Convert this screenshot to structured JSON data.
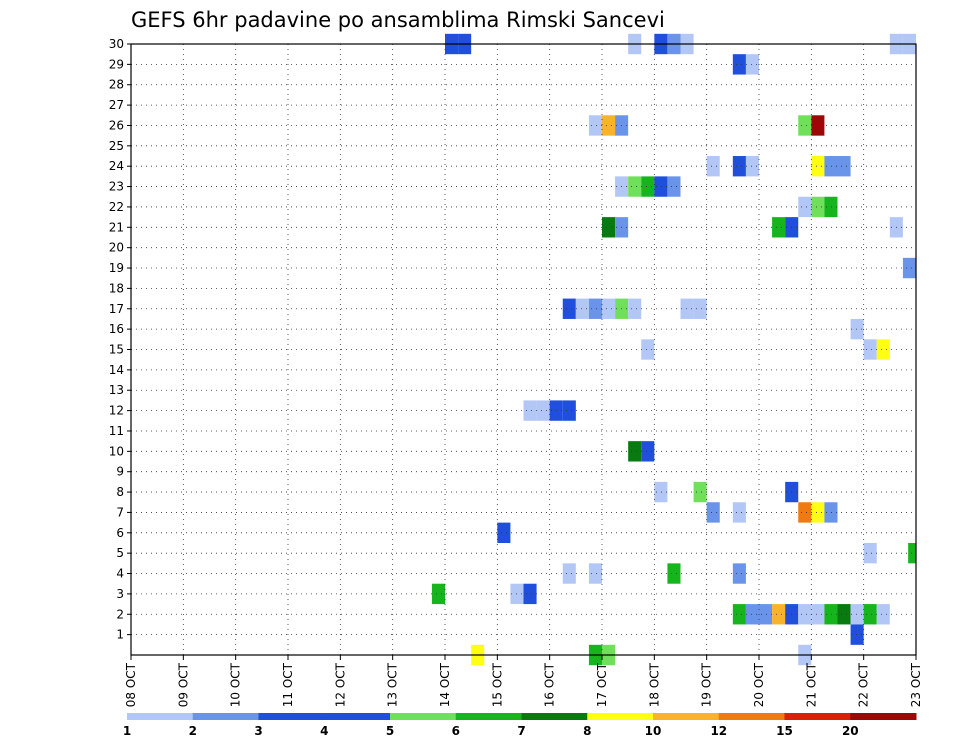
{
  "chart_data": {
    "type": "heatmap",
    "title": "GEFS 6hr padavine po ansamblima Rimski Sancevi",
    "xlabel": "",
    "ylabel": "",
    "x_start_day": 8,
    "x_end_day": 23,
    "x_tick_labels": [
      "08 OCT",
      "09 OCT",
      "10 OCT",
      "11 OCT",
      "12 OCT",
      "13 OCT",
      "14 OCT",
      "15 OCT",
      "16 OCT",
      "17 OCT",
      "18 OCT",
      "19 OCT",
      "20 OCT",
      "21 OCT",
      "22 OCT",
      "23 OCT"
    ],
    "y_tick_labels": [
      "1",
      "2",
      "3",
      "4",
      "5",
      "6",
      "7",
      "8",
      "9",
      "10",
      "11",
      "12",
      "13",
      "14",
      "15",
      "16",
      "17",
      "18",
      "19",
      "20",
      "21",
      "22",
      "23",
      "24",
      "25",
      "26",
      "27",
      "28",
      "29",
      "30"
    ],
    "ylim": [
      0,
      30
    ],
    "colorbar": {
      "labels": [
        "1",
        "2",
        "3",
        "4",
        "5",
        "6",
        "7",
        "8",
        "10",
        "12",
        "15",
        "20"
      ],
      "colors": [
        "#b3c7f7",
        "#6a93ea",
        "#1f4fdb",
        "#1f4fdb",
        "#70e05a",
        "#17b51d",
        "#087a10",
        "#ffff14",
        "#f7b32b",
        "#f07a10",
        "#d8200a",
        "#9a0808"
      ]
    },
    "cells": [
      {
        "member": 30,
        "day": 14.0,
        "category": 3
      },
      {
        "member": 30,
        "day": 14.25,
        "category": 3
      },
      {
        "member": 30,
        "day": 17.5,
        "category": 1
      },
      {
        "member": 30,
        "day": 18.0,
        "category": 3
      },
      {
        "member": 30,
        "day": 18.25,
        "category": 2
      },
      {
        "member": 30,
        "day": 18.5,
        "category": 1
      },
      {
        "member": 30,
        "day": 22.5,
        "category": 1
      },
      {
        "member": 30,
        "day": 22.75,
        "category": 1
      },
      {
        "member": 29,
        "day": 19.5,
        "category": 3
      },
      {
        "member": 29,
        "day": 19.75,
        "category": 1
      },
      {
        "member": 26,
        "day": 16.75,
        "category": 1
      },
      {
        "member": 26,
        "day": 17.0,
        "category": 9
      },
      {
        "member": 26,
        "day": 17.25,
        "category": 2
      },
      {
        "member": 26,
        "day": 20.75,
        "category": 5
      },
      {
        "member": 26,
        "day": 21.0,
        "category": 12
      },
      {
        "member": 24,
        "day": 19.0,
        "category": 1
      },
      {
        "member": 24,
        "day": 19.5,
        "category": 3
      },
      {
        "member": 24,
        "day": 19.75,
        "category": 1
      },
      {
        "member": 24,
        "day": 21.0,
        "category": 8
      },
      {
        "member": 24,
        "day": 21.25,
        "category": 2
      },
      {
        "member": 24,
        "day": 21.5,
        "category": 2
      },
      {
        "member": 23,
        "day": 17.25,
        "category": 1
      },
      {
        "member": 23,
        "day": 17.5,
        "category": 5
      },
      {
        "member": 23,
        "day": 17.75,
        "category": 6
      },
      {
        "member": 23,
        "day": 18.0,
        "category": 3
      },
      {
        "member": 23,
        "day": 18.25,
        "category": 2
      },
      {
        "member": 22,
        "day": 20.75,
        "category": 1
      },
      {
        "member": 22,
        "day": 21.0,
        "category": 5
      },
      {
        "member": 22,
        "day": 21.25,
        "category": 6
      },
      {
        "member": 21,
        "day": 17.0,
        "category": 7
      },
      {
        "member": 21,
        "day": 17.25,
        "category": 2
      },
      {
        "member": 21,
        "day": 20.25,
        "category": 6
      },
      {
        "member": 21,
        "day": 20.5,
        "category": 3
      },
      {
        "member": 21,
        "day": 22.5,
        "category": 1
      },
      {
        "member": 19,
        "day": 22.75,
        "category": 2
      },
      {
        "member": 17,
        "day": 16.25,
        "category": 3
      },
      {
        "member": 17,
        "day": 16.5,
        "category": 1
      },
      {
        "member": 17,
        "day": 16.75,
        "category": 2
      },
      {
        "member": 17,
        "day": 17.0,
        "category": 1
      },
      {
        "member": 17,
        "day": 17.25,
        "category": 5
      },
      {
        "member": 17,
        "day": 17.5,
        "category": 1
      },
      {
        "member": 17,
        "day": 18.5,
        "category": 1
      },
      {
        "member": 17,
        "day": 18.75,
        "category": 1
      },
      {
        "member": 16,
        "day": 21.75,
        "category": 1
      },
      {
        "member": 15,
        "day": 17.75,
        "category": 1
      },
      {
        "member": 15,
        "day": 22.0,
        "category": 1
      },
      {
        "member": 15,
        "day": 22.25,
        "category": 8
      },
      {
        "member": 12,
        "day": 15.5,
        "category": 1
      },
      {
        "member": 12,
        "day": 15.75,
        "category": 1
      },
      {
        "member": 12,
        "day": 16.0,
        "category": 3
      },
      {
        "member": 12,
        "day": 16.25,
        "category": 3
      },
      {
        "member": 10,
        "day": 17.5,
        "category": 7
      },
      {
        "member": 10,
        "day": 17.75,
        "category": 3
      },
      {
        "member": 8,
        "day": 18.0,
        "category": 1
      },
      {
        "member": 8,
        "day": 18.75,
        "category": 5
      },
      {
        "member": 8,
        "day": 20.5,
        "category": 3
      },
      {
        "member": 7,
        "day": 19.0,
        "category": 2
      },
      {
        "member": 7,
        "day": 19.5,
        "category": 1
      },
      {
        "member": 7,
        "day": 20.75,
        "category": 10
      },
      {
        "member": 7,
        "day": 21.0,
        "category": 8
      },
      {
        "member": 7,
        "day": 21.25,
        "category": 2
      },
      {
        "member": 6,
        "day": 15.0,
        "category": 3
      },
      {
        "member": 5,
        "day": 22.0,
        "category": 1
      },
      {
        "member": 5,
        "day": 22.85,
        "category": 6
      },
      {
        "member": 4,
        "day": 16.25,
        "category": 1
      },
      {
        "member": 4,
        "day": 16.75,
        "category": 1
      },
      {
        "member": 4,
        "day": 18.25,
        "category": 6
      },
      {
        "member": 4,
        "day": 19.5,
        "category": 2
      },
      {
        "member": 3,
        "day": 13.75,
        "category": 6
      },
      {
        "member": 3,
        "day": 15.25,
        "category": 1
      },
      {
        "member": 3,
        "day": 15.5,
        "category": 3
      },
      {
        "member": 2,
        "day": 19.5,
        "category": 6
      },
      {
        "member": 2,
        "day": 19.75,
        "category": 2
      },
      {
        "member": 2,
        "day": 20.0,
        "category": 2
      },
      {
        "member": 2,
        "day": 20.25,
        "category": 9
      },
      {
        "member": 2,
        "day": 20.5,
        "category": 3
      },
      {
        "member": 2,
        "day": 20.75,
        "category": 1
      },
      {
        "member": 2,
        "day": 21.0,
        "category": 1
      },
      {
        "member": 2,
        "day": 21.25,
        "category": 6
      },
      {
        "member": 2,
        "day": 21.5,
        "category": 7
      },
      {
        "member": 2,
        "day": 21.75,
        "category": 1
      },
      {
        "member": 2,
        "day": 22.0,
        "category": 6
      },
      {
        "member": 2,
        "day": 22.25,
        "category": 1
      },
      {
        "member": 1,
        "day": 21.75,
        "category": 3
      },
      {
        "member": 0,
        "day": 14.5,
        "category": 8
      },
      {
        "member": 0,
        "day": 16.75,
        "category": 6
      },
      {
        "member": 0,
        "day": 17.0,
        "category": 5
      },
      {
        "member": 0,
        "day": 20.75,
        "category": 1
      }
    ]
  }
}
